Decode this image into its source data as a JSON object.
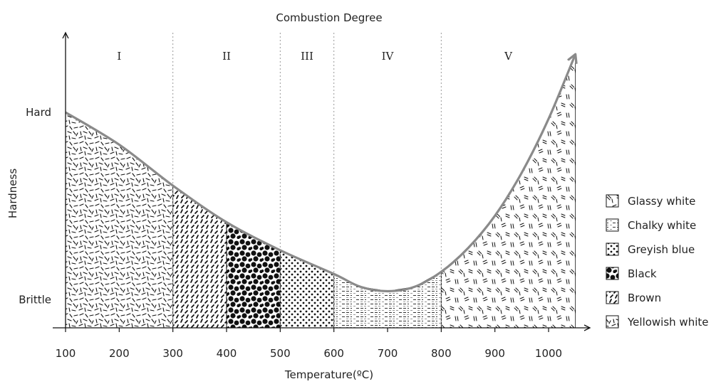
{
  "chart_data": {
    "type": "area",
    "title": "Combustion Degree",
    "xlabel": "Temperature(ºC)",
    "ylabel": "Hardness",
    "xlim": [
      100,
      1050
    ],
    "x_ticks": [
      100,
      200,
      300,
      400,
      500,
      600,
      700,
      800,
      900,
      1000
    ],
    "y_ticks": [
      {
        "label": "Brittle",
        "value": 0.13
      },
      {
        "label": "Hard",
        "value": 1.0
      }
    ],
    "stages": [
      {
        "label": "I",
        "from": 100,
        "to": 300
      },
      {
        "label": "II",
        "from": 300,
        "to": 500
      },
      {
        "label": "III",
        "from": 500,
        "to": 600
      },
      {
        "label": "IV",
        "from": 600,
        "to": 800
      },
      {
        "label": "V",
        "from": 800,
        "to": 1050
      }
    ],
    "curve": {
      "x": [
        100,
        200,
        300,
        400,
        500,
        600,
        650,
        700,
        750,
        800,
        850,
        900,
        950,
        1000,
        1050
      ],
      "y": [
        1.0,
        0.85,
        0.66,
        0.49,
        0.36,
        0.25,
        0.19,
        0.17,
        0.19,
        0.26,
        0.37,
        0.52,
        0.72,
        0.97,
        1.27
      ]
    },
    "regions": [
      {
        "from": 100,
        "to": 300,
        "pattern": "yellowish-white"
      },
      {
        "from": 300,
        "to": 400,
        "pattern": "brown"
      },
      {
        "from": 400,
        "to": 500,
        "pattern": "black"
      },
      {
        "from": 500,
        "to": 600,
        "pattern": "greyish-blue"
      },
      {
        "from": 600,
        "to": 800,
        "pattern": "chalky-white"
      },
      {
        "from": 800,
        "to": 1050,
        "pattern": "glassy-white"
      }
    ],
    "legend": [
      {
        "label": "Glassy white",
        "pattern": "glassy-white"
      },
      {
        "label": "Chalky white",
        "pattern": "chalky-white"
      },
      {
        "label": "Greyish blue",
        "pattern": "greyish-blue"
      },
      {
        "label": "Black",
        "pattern": "black"
      },
      {
        "label": "Brown",
        "pattern": "brown"
      },
      {
        "label": "Yellowish white",
        "pattern": "yellowish-white"
      }
    ],
    "legend_position": "right",
    "colors": {
      "curve": "#8a8a8a",
      "axis": "#111111",
      "stage_divider": "#9a9a9a"
    }
  }
}
